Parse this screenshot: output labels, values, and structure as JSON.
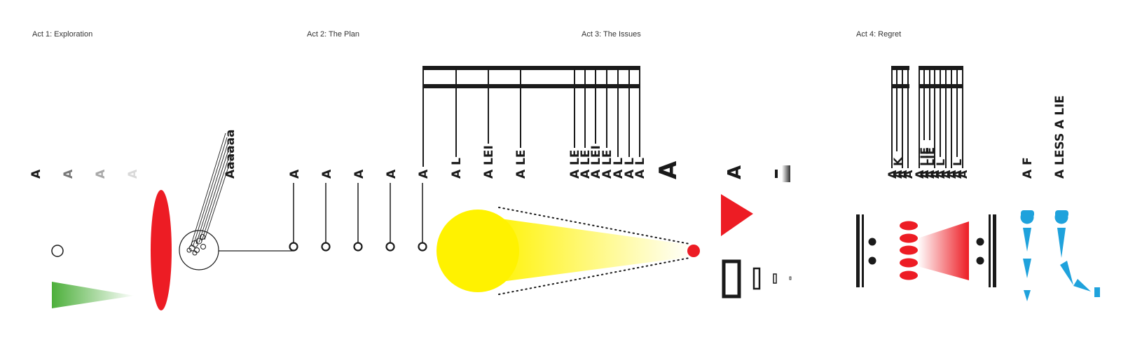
{
  "acts": [
    {
      "title": "Act 1: Exploration"
    },
    {
      "title": "Act 2: The Plan"
    },
    {
      "title": "Act 3: The Issues"
    },
    {
      "title": "Act 4: Regret"
    }
  ],
  "letter": "A",
  "act1": {
    "fading_letters": [
      "A",
      "A",
      "A",
      "A"
    ],
    "cluster_label": "Aaaaaa"
  },
  "act2": {
    "pins": [
      "A",
      "A",
      "A",
      "A",
      "A"
    ],
    "lie_labels": [
      "A L",
      "A LEI",
      "A LE",
      "A LE",
      "A LE",
      "A LEI",
      "A LE",
      "A L",
      "A L",
      "A L"
    ]
  },
  "act3": {
    "big_letters": [
      "A",
      "A",
      "A"
    ]
  },
  "act4": {
    "stack_labels": [
      "A",
      "A K",
      "A",
      "A",
      "A",
      "A LIE",
      "A LIE",
      "A",
      "A L",
      "A",
      "A",
      "A L",
      "A"
    ],
    "side_labels": [
      "A F",
      "A LESS A LIE"
    ]
  },
  "colors": {
    "red": "#ED1C24",
    "yellow": "#FFF200",
    "green": "#4CAF3A",
    "blue": "#1FA2DC",
    "ink": "#1a1a1a"
  }
}
